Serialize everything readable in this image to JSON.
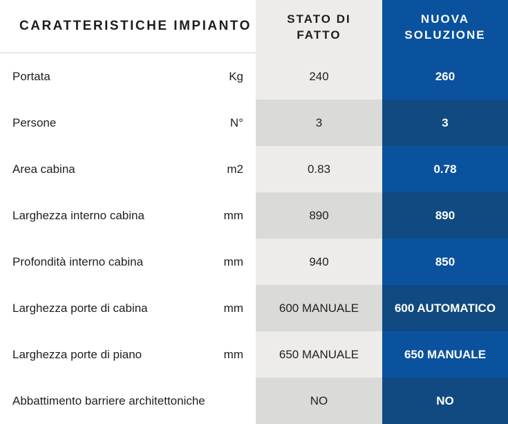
{
  "table": {
    "header": {
      "features": "CARATTERISTICHE IMPIANTO",
      "current": "STATO DI FATTO",
      "new": "NUOVA SOLUZIONE"
    },
    "rows": [
      {
        "label": "Portata",
        "unit": "Kg",
        "current": "240",
        "new": "260"
      },
      {
        "label": "Persone",
        "unit": "N°",
        "current": "3",
        "new": "3"
      },
      {
        "label": "Area cabina",
        "unit": "m2",
        "current": "0.83",
        "new": "0.78"
      },
      {
        "label": "Larghezza interno cabina",
        "unit": "mm",
        "current": "890",
        "new": "890"
      },
      {
        "label": "Profondità interno cabina",
        "unit": "mm",
        "current": "940",
        "new": "850"
      },
      {
        "label": "Larghezza porte di cabina",
        "unit": "mm",
        "current": "600 MANUALE",
        "new": "600 AUTOMATICO"
      },
      {
        "label": "Larghezza porte di piano",
        "unit": "mm",
        "current": "650 MANUALE",
        "new": "650 MANUALE"
      },
      {
        "label": "Abbattimento barriere architettoniche",
        "unit": "",
        "current": "NO",
        "new": "NO"
      }
    ],
    "colors": {
      "accent_blue": "#0B529E",
      "accent_blue_dark": "#114A80",
      "gray_light": "#EDECEA",
      "gray_dark": "#DADAD9",
      "header_divider": "#D7D5D3",
      "text_dark": "#1D1D1B",
      "text_light": "#FFFFFF"
    }
  }
}
